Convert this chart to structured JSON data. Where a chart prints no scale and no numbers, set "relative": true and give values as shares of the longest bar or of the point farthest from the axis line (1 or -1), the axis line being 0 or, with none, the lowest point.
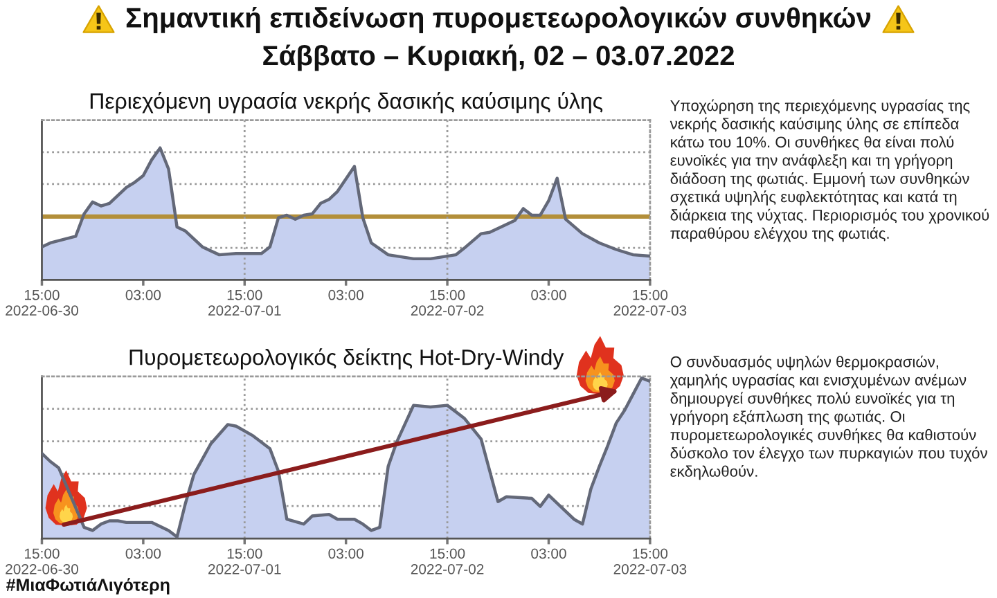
{
  "chart_data": [
    {
      "type": "other",
      "title": "Σημαντική επιδείνωση πυρομετεωρολογικών συνθηκών",
      "subtitle": "Σάββατο – Κυριακή, 02 – 03.07.2022"
    },
    {
      "type": "area",
      "title": "Περιεχόμενη υγρασία νεκρής δασικής καύσιμης ύλης",
      "relative": true,
      "x": [
        "2022-06-30T15:00",
        "2022-06-30T16:00",
        "2022-06-30T19:00",
        "2022-06-30T20:00",
        "2022-06-30T21:00",
        "2022-06-30T22:00",
        "2022-06-30T23:00",
        "2022-07-01T01:00",
        "2022-07-01T02:00",
        "2022-07-01T03:00",
        "2022-07-01T04:00",
        "2022-07-01T05:00",
        "2022-07-01T06:00",
        "2022-07-01T07:00",
        "2022-07-01T08:00",
        "2022-07-01T10:00",
        "2022-07-01T12:00",
        "2022-07-01T14:00",
        "2022-07-01T17:00",
        "2022-07-01T18:00",
        "2022-07-01T19:00",
        "2022-07-01T20:00",
        "2022-07-01T21:00",
        "2022-07-01T22:00",
        "2022-07-01T23:00",
        "2022-07-02T00:00",
        "2022-07-02T01:00",
        "2022-07-02T02:00",
        "2022-07-02T04:00",
        "2022-07-02T05:00",
        "2022-07-02T06:00",
        "2022-07-02T08:00",
        "2022-07-02T11:00",
        "2022-07-02T13:00",
        "2022-07-02T16:00",
        "2022-07-02T17:00",
        "2022-07-02T19:00",
        "2022-07-02T20:00",
        "2022-07-02T23:00",
        "2022-07-03T00:00",
        "2022-07-03T01:00",
        "2022-07-03T02:00",
        "2022-07-03T03:00",
        "2022-07-03T04:00",
        "2022-07-03T05:00",
        "2022-07-03T07:00",
        "2022-07-03T09:00",
        "2022-07-03T11:00",
        "2022-07-03T13:00",
        "2022-07-03T15:00"
      ],
      "series": [
        {
          "color": "#c6d0f0",
          "values": [
            0.25,
            0.28,
            0.33,
            0.5,
            0.59,
            0.56,
            0.58,
            0.7,
            0.74,
            0.79,
            0.91,
            1.0,
            0.84,
            0.4,
            0.37,
            0.25,
            0.19,
            0.2,
            0.2,
            0.25,
            0.47,
            0.49,
            0.46,
            0.49,
            0.5,
            0.58,
            0.61,
            0.67,
            0.86,
            0.47,
            0.28,
            0.19,
            0.16,
            0.16,
            0.19,
            0.24,
            0.35,
            0.36,
            0.45,
            0.54,
            0.49,
            0.49,
            0.6,
            0.77,
            0.46,
            0.35,
            0.28,
            0.23,
            0.19,
            0.18
          ]
        }
      ],
      "xlim": [
        "2022-06-30T15:00",
        "2022-07-03T15:00"
      ],
      "xticks": [
        {
          "value": "2022-06-30T15:00",
          "label": "15:00\n2022-06-30"
        },
        {
          "value": "2022-07-01T03:00",
          "label": "03:00"
        },
        {
          "value": "2022-07-01T15:00",
          "label": "15:00\n2022-07-01"
        },
        {
          "value": "2022-07-02T03:00",
          "label": "03:00"
        },
        {
          "value": "2022-07-02T15:00",
          "label": "15:00\n2022-07-02"
        },
        {
          "value": "2022-07-03T03:00",
          "label": "03:00"
        },
        {
          "value": "2022-07-03T15:00",
          "label": "15:00\n2022-07-03"
        }
      ],
      "grid": "y",
      "ref_lines": [
        {
          "axis": "y",
          "value": 0.48,
          "color": "#b38f3a"
        },
        {
          "axis": "x",
          "value": "2022-07-01T15:00",
          "color": "#9a9a9a",
          "line_style": "dotted"
        },
        {
          "axis": "x",
          "value": "2022-07-02T15:00",
          "color": "#9a9a9a",
          "line_style": "dotted"
        }
      ],
      "annotations": [
        "Υποχώρηση της περιεχόμενης υγρασίας της νεκρής δασικής καύσιμης ύλης σε επίπεδα κάτω του 10%. Οι συνθήκες θα είναι πολύ ευνοϊκές για την ανάφλεξη και τη γρήγορη διάδοση της φωτιάς. Εμμονή των συνθηκών σχετικά υψηλής ευφλεκτότητας και κατά τη διάρκεια της νύχτας. Περιορισμός του χρονικού παραθύρου ελέγχου της φωτιάς."
      ]
    },
    {
      "type": "area",
      "title": "Πυρομετεωρολογικός δείκτης Hot-Dry-Windy",
      "relative": true,
      "x": [
        "2022-06-30T15:00",
        "2022-06-30T16:00",
        "2022-06-30T17:00",
        "2022-06-30T20:00",
        "2022-06-30T21:00",
        "2022-06-30T22:00",
        "2022-06-30T23:00",
        "2022-07-01T00:00",
        "2022-07-01T01:00",
        "2022-07-01T04:00",
        "2022-07-01T06:00",
        "2022-07-01T07:00",
        "2022-07-01T08:00",
        "2022-07-01T09:00",
        "2022-07-01T11:00",
        "2022-07-01T13:00",
        "2022-07-01T14:00",
        "2022-07-01T16:00",
        "2022-07-01T18:00",
        "2022-07-01T19:00",
        "2022-07-01T20:00",
        "2022-07-01T22:00",
        "2022-07-01T23:00",
        "2022-07-02T01:00",
        "2022-07-02T02:00",
        "2022-07-02T04:00",
        "2022-07-02T05:00",
        "2022-07-02T06:00",
        "2022-07-02T07:00",
        "2022-07-02T08:00",
        "2022-07-02T09:00",
        "2022-07-02T11:00",
        "2022-07-02T13:00",
        "2022-07-02T15:00",
        "2022-07-02T16:00",
        "2022-07-02T17:00",
        "2022-07-02T19:00",
        "2022-07-02T21:00",
        "2022-07-02T22:00",
        "2022-07-03T01:00",
        "2022-07-03T02:00",
        "2022-07-03T03:00",
        "2022-07-03T05:00",
        "2022-07-03T06:00",
        "2022-07-03T07:00",
        "2022-07-03T08:00",
        "2022-07-03T09:00",
        "2022-07-03T10:00",
        "2022-07-03T11:00",
        "2022-07-03T12:00",
        "2022-07-03T13:00",
        "2022-07-03T14:00",
        "2022-07-03T15:00"
      ],
      "series": [
        {
          "color": "#c6d0f0",
          "values": [
            0.53,
            0.48,
            0.44,
            0.07,
            0.05,
            0.09,
            0.11,
            0.11,
            0.1,
            0.1,
            0.05,
            0.01,
            0.22,
            0.4,
            0.59,
            0.71,
            0.7,
            0.64,
            0.56,
            0.42,
            0.12,
            0.09,
            0.14,
            0.15,
            0.12,
            0.12,
            0.09,
            0.05,
            0.07,
            0.45,
            0.6,
            0.83,
            0.82,
            0.83,
            0.79,
            0.75,
            0.62,
            0.23,
            0.26,
            0.25,
            0.2,
            0.27,
            0.17,
            0.12,
            0.09,
            0.31,
            0.45,
            0.58,
            0.72,
            0.8,
            0.9,
            1.0,
            0.98
          ]
        }
      ],
      "xlim": [
        "2022-06-30T15:00",
        "2022-07-03T15:00"
      ],
      "xticks": [
        {
          "value": "2022-06-30T15:00",
          "label": "15:00\n2022-06-30"
        },
        {
          "value": "2022-07-01T03:00",
          "label": "03:00"
        },
        {
          "value": "2022-07-01T15:00",
          "label": "15:00\n2022-07-01"
        },
        {
          "value": "2022-07-02T03:00",
          "label": "03:00"
        },
        {
          "value": "2022-07-02T15:00",
          "label": "15:00\n2022-07-02"
        },
        {
          "value": "2022-07-03T03:00",
          "label": "03:00"
        },
        {
          "value": "2022-07-03T15:00",
          "label": "15:00\n2022-07-03"
        }
      ],
      "grid": "y",
      "ref_lines": [
        {
          "axis": "x",
          "value": "2022-07-01T15:00",
          "color": "#9a9a9a",
          "line_style": "dotted"
        },
        {
          "axis": "x",
          "value": "2022-07-02T15:00",
          "color": "#9a9a9a",
          "line_style": "dotted"
        }
      ],
      "annotations": [
        "Ο συνδυασμός υψηλών θερμοκρασιών, χαμηλής υγρασίας και ενισχυμένων ανέμων δημιουργεί συνθήκες πολύ ευνοϊκές για τη γρήγορη εξάπλωση της φωτιάς. Οι πυρομετεωρολογικές συνθήκες θα καθιστούν δύσκολο τον έλεγχο των πυρκαγιών που τυχόν εκδηλωθούν.",
        "#ΜιαΦωτιάΛιγότερη"
      ]
    }
  ]
}
